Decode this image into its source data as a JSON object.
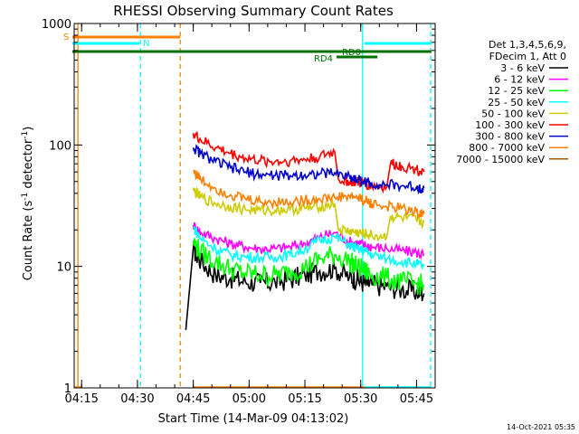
{
  "chart_data": {
    "type": "line",
    "title": "RHESSI Observing Summary Count Rates",
    "xlabel": "Start Time (14-Mar-09 04:13:02)",
    "ylabel_main": "Count Rate (s",
    "ylabel_sup1": "-1",
    "ylabel_mid": " detector",
    "ylabel_sup2": "-1",
    "ylabel_end": ")",
    "y_scale": "log",
    "ylim": [
      1,
      1000
    ],
    "xlim_minutes": [
      0,
      97
    ],
    "x_ticks": [
      {
        "label": "04:15",
        "minute": 2
      },
      {
        "label": "04:30",
        "minute": 17
      },
      {
        "label": "04:45",
        "minute": 32
      },
      {
        "label": "05:00",
        "minute": 47
      },
      {
        "label": "05:15",
        "minute": 62
      },
      {
        "label": "05:30",
        "minute": 77
      },
      {
        "label": "05:45",
        "minute": 92
      }
    ],
    "y_ticks": [
      {
        "label": "1",
        "value": 1
      },
      {
        "label": "10",
        "value": 10
      },
      {
        "label": "100",
        "value": 100
      },
      {
        "label": "1000",
        "value": 1000
      }
    ],
    "legend": {
      "placement": "right",
      "header": [
        "Det 1,3,4,5,6,9,",
        "FDecim 1, Att 0"
      ]
    },
    "series": [
      {
        "name": "3 - 6 keV",
        "color": "#000000",
        "x": [
          30,
          32,
          34,
          38,
          42,
          46,
          50,
          54,
          58,
          62,
          66,
          70,
          74,
          76,
          78,
          80,
          84,
          88,
          92,
          94
        ],
        "y": [
          3,
          14,
          11,
          8.5,
          8,
          7.5,
          7.3,
          7.4,
          7.8,
          8.5,
          9.2,
          9.6,
          8.2,
          7.8,
          7.3,
          7.1,
          6.8,
          6.5,
          6.2,
          6
        ]
      },
      {
        "name": "6 - 12 keV",
        "color": "#ff00ff",
        "x": [
          32,
          34,
          38,
          42,
          46,
          50,
          54,
          58,
          62,
          66,
          70,
          74,
          76,
          78,
          80,
          84,
          88,
          92,
          94
        ],
        "y": [
          22,
          19,
          17,
          15.5,
          14.5,
          14,
          14,
          14.5,
          15.5,
          17.5,
          19,
          16,
          15.5,
          15,
          14.5,
          14,
          13.5,
          13,
          12.5
        ]
      },
      {
        "name": "12 - 25 keV",
        "color": "#00ff00",
        "x": [
          32,
          34,
          38,
          42,
          46,
          50,
          54,
          58,
          62,
          66,
          70,
          74,
          76,
          78,
          80,
          84,
          88,
          92,
          94
        ],
        "y": [
          16,
          13,
          11,
          9.5,
          8.8,
          8.5,
          8.5,
          9,
          9.8,
          11.5,
          12.5,
          11,
          10,
          9.2,
          8.5,
          8,
          7.5,
          7.2,
          7
        ]
      },
      {
        "name": "25 - 50 keV",
        "color": "#00ffff",
        "x": [
          32,
          34,
          38,
          42,
          46,
          50,
          54,
          58,
          62,
          66,
          70,
          74,
          76,
          78,
          80,
          84,
          88,
          92,
          94
        ],
        "y": [
          21,
          17,
          14,
          12.5,
          12,
          11.8,
          12,
          12.5,
          14,
          16.5,
          17.5,
          15,
          14,
          13.5,
          12.5,
          11.5,
          11,
          10.5,
          10
        ]
      },
      {
        "name": "50 - 100 keV",
        "color": "#cccc00",
        "x": [
          32,
          34,
          38,
          42,
          46,
          50,
          54,
          58,
          62,
          66,
          70,
          71,
          74,
          76,
          78,
          80,
          84,
          85,
          88,
          92,
          94
        ],
        "y": [
          42,
          37,
          33,
          31,
          29.5,
          29,
          29,
          29.5,
          30,
          31,
          33,
          20,
          19.5,
          19,
          18.5,
          18,
          17.5,
          26,
          25,
          24,
          23
        ]
      },
      {
        "name": "100 - 300 keV",
        "color": "#ff0000",
        "x": [
          32,
          34,
          38,
          42,
          46,
          50,
          54,
          58,
          62,
          66,
          70,
          71,
          74,
          76,
          78,
          80,
          84,
          85,
          88,
          92,
          94
        ],
        "y": [
          125,
          110,
          95,
          85,
          78,
          74,
          73,
          74,
          76,
          80,
          88,
          52,
          50,
          49,
          48,
          46,
          45,
          70,
          67,
          63,
          60
        ]
      },
      {
        "name": "300 - 800 keV",
        "color": "#0000cc",
        "x": [
          32,
          34,
          38,
          42,
          46,
          50,
          54,
          58,
          62,
          66,
          70,
          74,
          76,
          78,
          80,
          84,
          88,
          92,
          94
        ],
        "y": [
          95,
          85,
          73,
          65,
          60,
          57,
          56,
          56,
          57,
          58,
          59,
          55,
          52,
          50,
          48,
          47,
          46,
          45,
          44
        ]
      },
      {
        "name": "800 - 7000 keV",
        "color": "#ff8000",
        "x": [
          32,
          34,
          38,
          42,
          46,
          50,
          54,
          58,
          62,
          66,
          70,
          74,
          76,
          78,
          80,
          84,
          88,
          92,
          94
        ],
        "y": [
          62,
          52,
          44,
          39,
          36,
          34,
          34,
          34,
          35,
          36,
          37,
          38,
          37,
          35,
          33,
          31,
          30,
          28,
          27
        ]
      },
      {
        "name": "7000 - 15000 keV",
        "color": "#a05a00",
        "x": [],
        "y": []
      }
    ],
    "annotations": {
      "status_labels": [
        {
          "label": "S",
          "color": "#ff8000"
        },
        {
          "label": "N",
          "color": "#00ffff"
        },
        {
          "label": "RD0",
          "color": "#007000"
        },
        {
          "label": "RD4",
          "color": "#007000"
        }
      ],
      "status_bars": [
        {
          "state": "S",
          "color": "#ff8000",
          "x_start": -0.5,
          "x_end": 28.5
        },
        {
          "state": "N",
          "color": "#00ffff",
          "x_start": -0.5,
          "x_end": 17.5
        },
        {
          "state": "N",
          "color": "#00ffff",
          "x_start": 78,
          "x_end": 96
        },
        {
          "state": "RD0",
          "color": "#007000",
          "x_start": -0.5,
          "x_end": 96
        },
        {
          "state": "RD4",
          "color": "#007000",
          "x_start": 70.5,
          "x_end": 81.5
        }
      ],
      "vlines": [
        {
          "minute": 1,
          "color": "#ff8000",
          "style": "solid"
        },
        {
          "minute": 17.8,
          "color": "#00ffff",
          "style": "dashed"
        },
        {
          "minute": 28.5,
          "color": "#ff8000",
          "style": "dashed"
        },
        {
          "minute": 77.5,
          "color": "#00ffff",
          "style": "solid"
        },
        {
          "minute": 95.8,
          "color": "#00ffff",
          "style": "dashed"
        }
      ],
      "bottom_segments": [
        {
          "color": "#ff8000",
          "x_start": 0,
          "x_end": 2
        },
        {
          "color": "#ff8000",
          "x_start": 32,
          "x_end": 78
        },
        {
          "color": "#00ffff",
          "x_start": 78,
          "x_end": 96
        }
      ]
    }
  },
  "footer": {
    "timestamp": "14-Oct-2021 05:35"
  }
}
